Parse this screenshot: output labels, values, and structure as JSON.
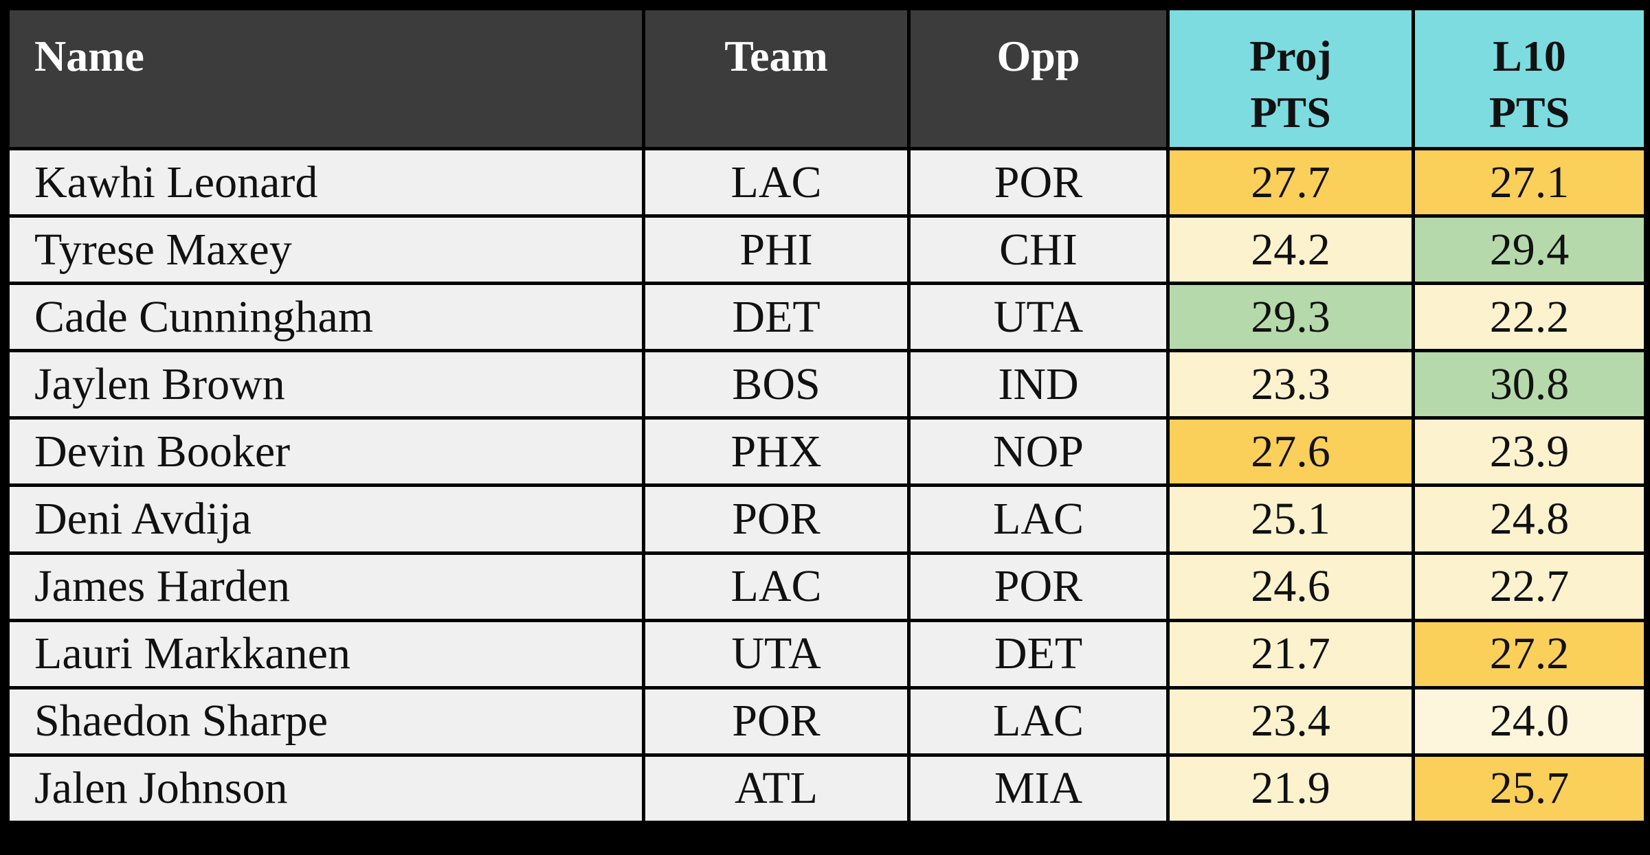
{
  "chart_data": {
    "type": "table",
    "columns": [
      {
        "key": "name",
        "label": "Name",
        "align": "left"
      },
      {
        "key": "team",
        "label": "Team",
        "align": "center"
      },
      {
        "key": "opp",
        "label": "Opp",
        "align": "center"
      },
      {
        "key": "proj",
        "label": "Proj PTS",
        "label_lines": [
          "Proj",
          "PTS"
        ],
        "align": "center",
        "accent": true
      },
      {
        "key": "l10",
        "label": "L10 PTS",
        "label_lines": [
          "L10",
          "PTS"
        ],
        "align": "center",
        "accent": true
      }
    ],
    "rows": [
      {
        "name": "Kawhi Leonard",
        "team": "LAC",
        "opp": "POR",
        "proj": "27.7",
        "l10": "27.1",
        "proj_color": "orange",
        "l10_color": "orange"
      },
      {
        "name": "Tyrese Maxey",
        "team": "PHI",
        "opp": "CHI",
        "proj": "24.2",
        "l10": "29.4",
        "proj_color": "light_yellow",
        "l10_color": "green"
      },
      {
        "name": "Cade Cunningham",
        "team": "DET",
        "opp": "UTA",
        "proj": "29.3",
        "l10": "22.2",
        "proj_color": "green",
        "l10_color": "light_yellow"
      },
      {
        "name": "Jaylen Brown",
        "team": "BOS",
        "opp": "IND",
        "proj": "23.3",
        "l10": "30.8",
        "proj_color": "light_yellow",
        "l10_color": "green"
      },
      {
        "name": "Devin Booker",
        "team": "PHX",
        "opp": "NOP",
        "proj": "27.6",
        "l10": "23.9",
        "proj_color": "orange",
        "l10_color": "light_yellow"
      },
      {
        "name": "Deni Avdija",
        "team": "POR",
        "opp": "LAC",
        "proj": "25.1",
        "l10": "24.8",
        "proj_color": "light_yellow",
        "l10_color": "light_yellow"
      },
      {
        "name": "James Harden",
        "team": "LAC",
        "opp": "POR",
        "proj": "24.6",
        "l10": "22.7",
        "proj_color": "light_yellow",
        "l10_color": "light_yellow"
      },
      {
        "name": "Lauri Markkanen",
        "team": "UTA",
        "opp": "DET",
        "proj": "21.7",
        "l10": "27.2",
        "proj_color": "light_yellow",
        "l10_color": "orange"
      },
      {
        "name": "Shaedon Sharpe",
        "team": "POR",
        "opp": "LAC",
        "proj": "23.4",
        "l10": "24.0",
        "proj_color": "light_yellow",
        "l10_color": "pale_yellow"
      },
      {
        "name": "Jalen Johnson",
        "team": "ATL",
        "opp": "MIA",
        "proj": "21.9",
        "l10": "25.7",
        "proj_color": "light_yellow",
        "l10_color": "orange"
      }
    ]
  },
  "colors": {
    "orange": "#FACF5A",
    "light_yellow": "#FCF2CE",
    "pale_yellow": "#FDF5DC",
    "green": "#B5D9AB",
    "header_dark": "#3C3C3C",
    "header_cyan": "#7CDCE0",
    "header_text": "#FFFFFF",
    "row_bg": "#F0F0F0",
    "text_dark": "#111111",
    "border": "#000000"
  }
}
